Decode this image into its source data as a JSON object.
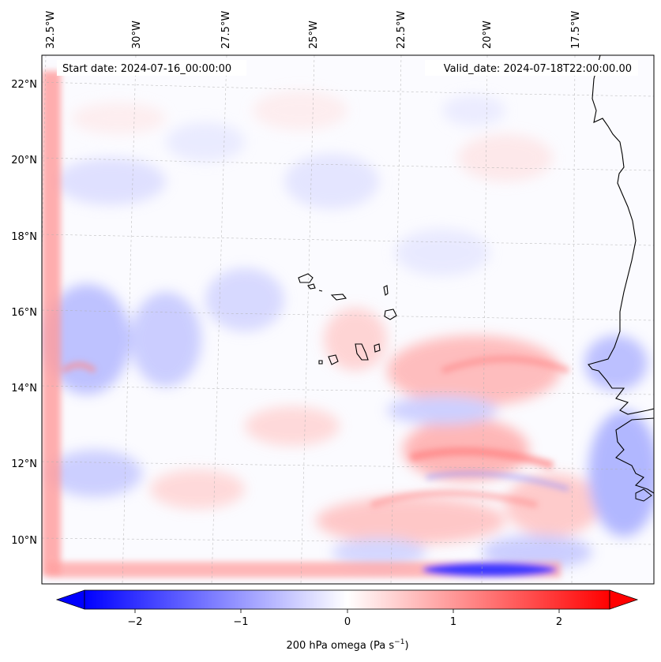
{
  "map": {
    "start_date_label": "Start date: 2024-07-16_00:00:00",
    "valid_date_label": "Valid_date: 2024-07-18T22:00:00.00",
    "lon_labels": [
      "32.5°W",
      "30°W",
      "27.5°W",
      "25°W",
      "22.5°W",
      "20°W",
      "17.5°W"
    ],
    "lat_labels": [
      "22°N",
      "20°N",
      "18°N",
      "16°N",
      "14°N",
      "12°N",
      "10°N"
    ],
    "islands": [
      "Santo Antão",
      "São Vicente",
      "Santa Luzia",
      "São Nicolau",
      "Sal",
      "Boa Vista",
      "Maio",
      "Santiago",
      "Fogo",
      "Brava"
    ],
    "colors": {
      "negative": "#0000ff",
      "positive": "#ff0000",
      "neutral": "#ffffff",
      "coastline": "#000000"
    }
  },
  "colorbar": {
    "ticks": [
      "−2",
      "−1",
      "0",
      "1",
      "2"
    ],
    "label": "200 hPa omega (Pa s",
    "label_sup": "−1",
    "label_end": ")",
    "range": [
      -2.6,
      2.6
    ]
  }
}
